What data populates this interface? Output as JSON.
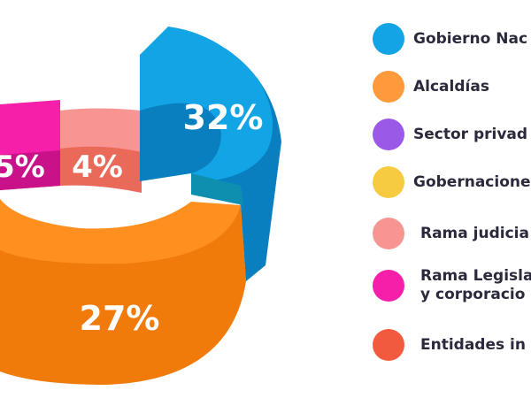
{
  "chart_data": {
    "type": "pie",
    "title": "",
    "slices": [
      {
        "label": "32%",
        "value": 32,
        "color": "#12a4e4",
        "side": "#0a7fc0"
      },
      {
        "label": "27%",
        "value": 27,
        "color": "#ff8f1f",
        "side": "#f07a0a"
      },
      {
        "label": "5%",
        "value": 5,
        "color": "#f51faa",
        "side": "#c9128a"
      },
      {
        "label": "4%",
        "value": 4,
        "color": "#f89592",
        "side": "#ea6a5a"
      }
    ],
    "legend": [
      {
        "label": "Gobierno Nac",
        "color": "#12a4e4"
      },
      {
        "label": "Alcaldías",
        "color": "#ff9a3c"
      },
      {
        "label": "Sector privad",
        "color": "#9b59e8"
      },
      {
        "label": "Gobernacione",
        "color": "#f7cb3f"
      },
      {
        "label": "Rama judicia",
        "color": "#f89592"
      },
      {
        "label": "Rama Legisla",
        "label2": "y corporacio",
        "color": "#f51faa"
      },
      {
        "label": "Entidades in",
        "color": "#f25a3f"
      }
    ],
    "legend_position": "right"
  }
}
